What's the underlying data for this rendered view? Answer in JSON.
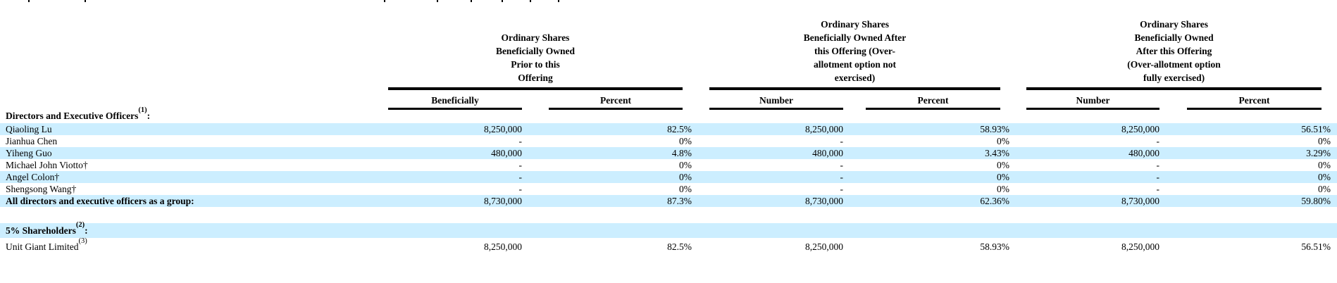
{
  "document": {
    "highlight_color": "#cceeff",
    "rule_color": "#000000",
    "top_edge_fragments": {
      "description": "clipped descender fragments of a cut-off line of body text at the top edge of the screenshot",
      "x_positions": [
        40,
        120,
        545,
        620,
        668,
        712,
        752,
        792
      ]
    }
  },
  "table": {
    "group_headers": [
      {
        "title": "Ordinary Shares\nBeneficially Owned\nPrior to this\nOffering"
      },
      {
        "title": "Ordinary Shares\nBeneficially Owned After\nthis Offering (Over-\nallotment option not\nexercised)"
      },
      {
        "title": "Ordinary Shares\nBeneficially Owned\nAfter this Offering\n(Over-allotment option\nfully exercised)"
      }
    ],
    "sub_headers": [
      "Beneficially",
      "Percent",
      "Number",
      "Percent",
      "Number",
      "Percent"
    ],
    "rows": [
      {
        "type": "section",
        "label": "Directors and Executive Officers",
        "sup": "(1)",
        "suffix": ":",
        "bold": true,
        "highlight": false,
        "values": []
      },
      {
        "type": "data",
        "label": "Qiaoling Lu",
        "bold": false,
        "highlight": true,
        "values": [
          "8,250,000",
          "82.5%",
          "8,250,000",
          "58.93%",
          "8,250,000",
          "56.51%"
        ]
      },
      {
        "type": "data",
        "label": "Jianhua Chen",
        "bold": false,
        "highlight": false,
        "values": [
          "-",
          "0%",
          "-",
          "0%",
          "-",
          "0%"
        ]
      },
      {
        "type": "data",
        "label": "Yiheng Guo",
        "bold": false,
        "highlight": true,
        "values": [
          "480,000",
          "4.8%",
          "480,000",
          "3.43%",
          "480,000",
          "3.29%"
        ]
      },
      {
        "type": "data",
        "label": "Michael John Viotto†",
        "bold": false,
        "highlight": false,
        "values": [
          "-",
          "0%",
          "-",
          "0%",
          "-",
          "0%"
        ]
      },
      {
        "type": "data",
        "label": "Angel Colon†",
        "bold": false,
        "highlight": true,
        "values": [
          "-",
          "0%",
          "-",
          "0%",
          "-",
          "0%"
        ]
      },
      {
        "type": "data",
        "label": "Shengsong Wang†",
        "bold": false,
        "highlight": false,
        "values": [
          "-",
          "0%",
          "-",
          "0%",
          "-",
          "0%"
        ]
      },
      {
        "type": "data",
        "label": "All directors and executive officers as a group:",
        "bold": true,
        "highlight": true,
        "values": [
          "8,730,000",
          "87.3%",
          "8,730,000",
          "62.36%",
          "8,730,000",
          "59.80%"
        ]
      },
      {
        "type": "spacer"
      },
      {
        "type": "section",
        "label": "5% Shareholders",
        "sup": "(2)",
        "suffix": ":",
        "bold": true,
        "highlight": true,
        "values": []
      },
      {
        "type": "data",
        "label": "Unit Giant Limited",
        "sup": "(3)",
        "bold": false,
        "highlight": false,
        "values": [
          "8,250,000",
          "82.5%",
          "8,250,000",
          "58.93%",
          "8,250,000",
          "56.51%"
        ]
      }
    ]
  }
}
